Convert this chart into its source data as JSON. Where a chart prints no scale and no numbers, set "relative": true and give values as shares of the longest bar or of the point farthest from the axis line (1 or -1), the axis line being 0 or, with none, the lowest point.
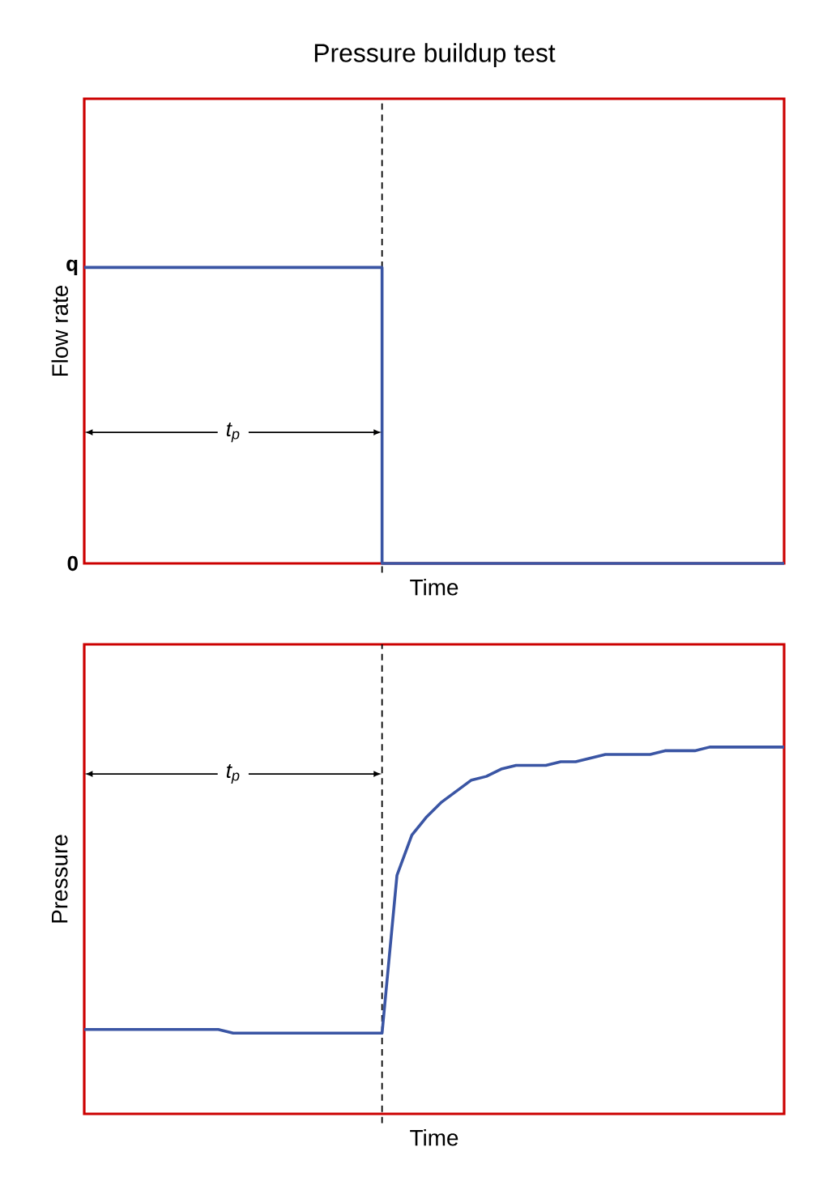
{
  "chart_data": [
    {
      "type": "step",
      "relative": true,
      "title": "Pressure buildup test",
      "xlabel": "Time",
      "ylabel": "Flow rate",
      "categories": [
        null,
        null,
        null,
        null,
        null,
        null,
        null,
        null,
        null,
        null,
        null,
        null,
        null,
        null,
        null,
        null,
        null,
        null,
        null,
        null,
        null,
        null,
        null,
        null,
        null,
        null,
        null,
        null,
        null,
        null,
        null,
        null,
        null,
        null,
        null,
        null,
        null,
        null,
        null,
        null,
        null,
        null,
        null,
        null,
        null,
        null,
        null,
        null
      ],
      "values": [
        1,
        1,
        1,
        1,
        1,
        1,
        1,
        1,
        1,
        1,
        1,
        1,
        1,
        1,
        1,
        1,
        1,
        1,
        1,
        1,
        0,
        0,
        0,
        0,
        0,
        0,
        0,
        0,
        0,
        0,
        0,
        0,
        0,
        0,
        0,
        0,
        0,
        0,
        0,
        0,
        0,
        0,
        0,
        0,
        0,
        0,
        0,
        0
      ],
      "color": "#3a55a4",
      "tick_labels": false,
      "annotations": [
        "t$_{p}$",
        "q",
        "0"
      ]
    },
    {
      "type": "line",
      "relative": true,
      "xlabel": "Time",
      "ylabel": "Pressure",
      "categories": [
        null,
        null,
        null,
        null,
        null,
        null,
        null,
        null,
        null,
        null,
        null,
        null,
        null,
        null,
        null,
        null,
        null,
        null,
        null,
        null,
        null,
        null,
        null,
        null,
        null,
        null,
        null,
        null,
        null,
        null,
        null,
        null,
        null,
        null,
        null,
        null,
        null,
        null,
        null,
        null,
        null,
        null,
        null,
        null,
        null,
        null,
        null,
        null
      ],
      "values": [
        0.23,
        0.23,
        0.23,
        0.23,
        0.23,
        0.23,
        0.23,
        0.23,
        0.23,
        0.23,
        0.22,
        0.22,
        0.22,
        0.22,
        0.22,
        0.22,
        0.22,
        0.22,
        0.22,
        0.22,
        0.22,
        0.65,
        0.76,
        0.81,
        0.85,
        0.88,
        0.91,
        0.92,
        0.94,
        0.95,
        0.95,
        0.95,
        0.96,
        0.96,
        0.97,
        0.98,
        0.98,
        0.98,
        0.98,
        0.99,
        0.99,
        0.99,
        1,
        1,
        1,
        1,
        1,
        1
      ],
      "color": "#3a55a4",
      "tick_labels": false,
      "annotations": [
        "t$_{p}$"
      ]
    }
  ]
}
